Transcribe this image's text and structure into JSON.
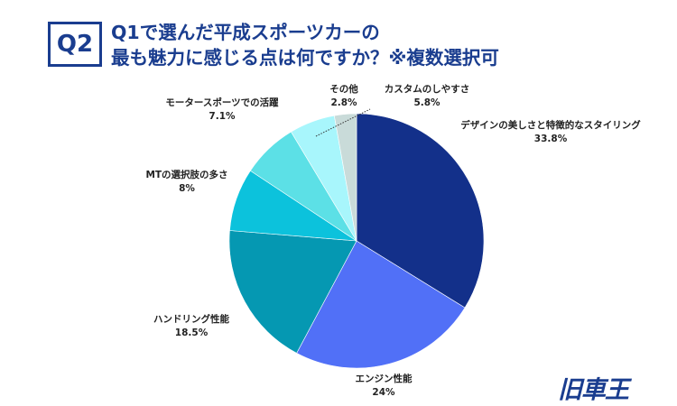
{
  "header": {
    "badge": "Q2",
    "title_line1": "Q1で選んだ平成スポーツカーの",
    "title_line2": "最も魅力に感じる点は何ですか？※複数選択可"
  },
  "logo": "旧車王",
  "chart_data": {
    "type": "pie",
    "start": "top",
    "direction": "clockwise",
    "slices": [
      {
        "label": "デザインの美しさと特徴的なスタイリング",
        "value": 33.8,
        "display": "33.8%",
        "color": "#13308a"
      },
      {
        "label": "エンジン性能",
        "value": 24,
        "display": "24%",
        "color": "#5170f7"
      },
      {
        "label": "ハンドリング性能",
        "value": 18.5,
        "display": "18.5%",
        "color": "#0598b2"
      },
      {
        "label": "MTの選択肢の多さ",
        "value": 8,
        "display": "8%",
        "color": "#0cc2dc"
      },
      {
        "label": "モータースポーツでの活躍",
        "value": 7.1,
        "display": "7.1%",
        "color": "#5ce0e6"
      },
      {
        "label": "カスタムのしやすさ",
        "value": 5.8,
        "display": "5.8%",
        "color": "#a8f6fc"
      },
      {
        "label": "その他",
        "value": 2.8,
        "display": "2.8%",
        "color": "#c9dbd9"
      }
    ]
  }
}
